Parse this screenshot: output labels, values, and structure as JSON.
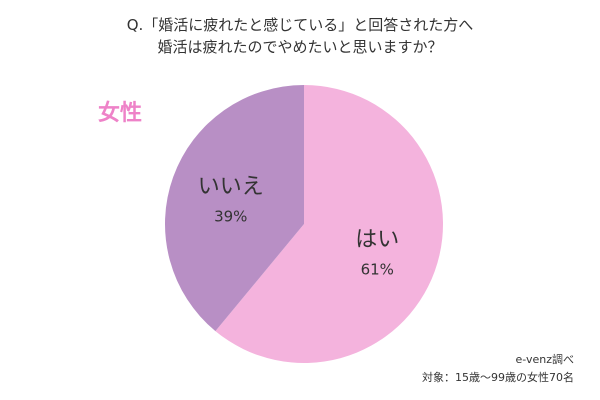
{
  "question": {
    "line1": "Q.「婚活に疲れたと感じている」と回答された方へ",
    "line2": "婚活は疲れたのでやめたいと思いますか？"
  },
  "group_label": "女性",
  "chart_data": {
    "type": "pie",
    "start": "top, clockwise",
    "slices": [
      {
        "label": "はい",
        "value": 61,
        "value_label": "61%",
        "color": "#f4b3dd"
      },
      {
        "label": "いいえ",
        "value": 39,
        "value_label": "39%",
        "color": "#b88fc5"
      }
    ]
  },
  "colors": {
    "accent": "#ee82c8",
    "text": "#333333"
  },
  "source": {
    "credit": "e-venz調べ",
    "subjects": "対象：15歳〜99歳の女性70名"
  }
}
